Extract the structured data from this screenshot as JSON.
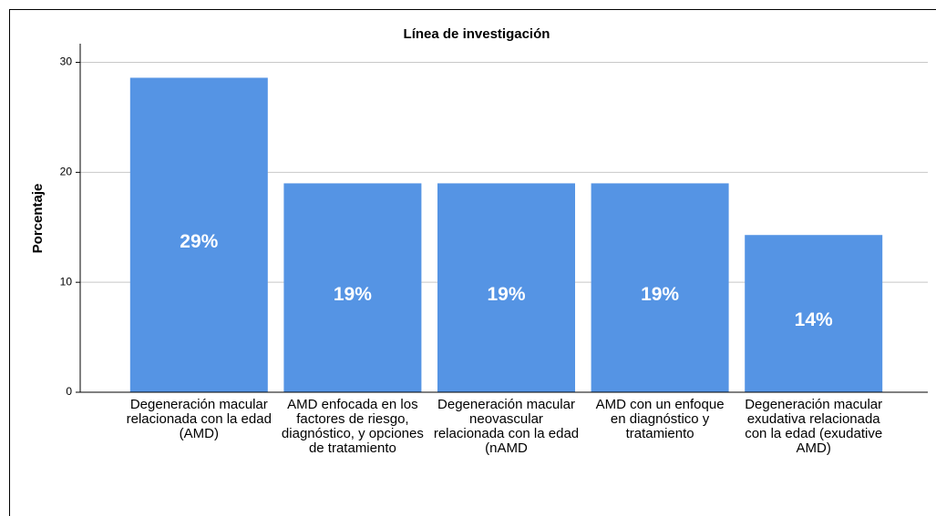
{
  "chart_data": {
    "type": "bar",
    "title": "Línea de investigación",
    "y_label": "Porcentaje",
    "categories": [
      "Degeneración macular relacionada con la edad (AMD)",
      "AMD enfocada en los factores de riesgo, diagnóstico, y opciones de tratamiento",
      "Degeneración macular neovascular relacionada con la edad (nAMD",
      "AMD con un enfoque en diagnóstico y tratamiento",
      "Degeneración macular exudativa relacionada con la edad (exudative AMD)"
    ],
    "values": [
      28.6,
      19.0,
      19.0,
      19.0,
      14.3
    ],
    "value_labels": [
      "29%",
      "19%",
      "19%",
      "19%",
      "14%"
    ],
    "color": "#5594e4",
    "ylim": [
      0,
      31.7
    ],
    "yticks": [
      0,
      10,
      20,
      30
    ],
    "grid": true
  }
}
